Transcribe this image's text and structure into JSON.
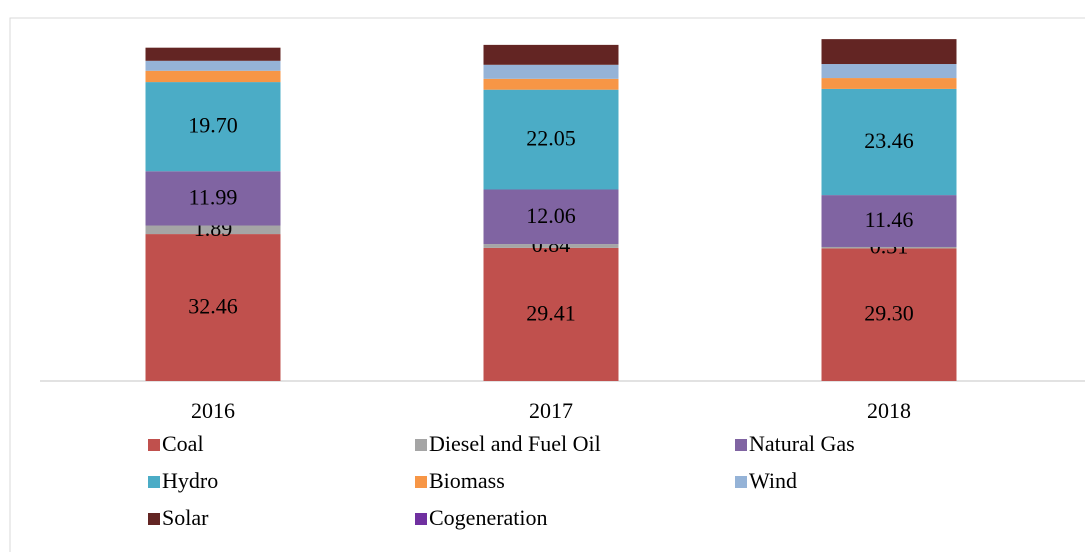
{
  "chart_data": {
    "type": "bar",
    "stacked": true,
    "categories": [
      "2016",
      "2017",
      "2018"
    ],
    "ylim": [
      0,
      76
    ],
    "series": [
      {
        "name": "Coal",
        "color": "#c0504d",
        "values": [
          32.46,
          29.41,
          29.3
        ],
        "value_labels": [
          "32.46",
          "29.41",
          "29.30"
        ]
      },
      {
        "name": "Diesel and Fuel Oil",
        "color": "#a5a5a5",
        "values": [
          1.89,
          0.84,
          0.31
        ],
        "value_labels": [
          "1.89",
          "0.84",
          "0.31"
        ]
      },
      {
        "name": "Natural Gas",
        "color": "#8064a2",
        "values": [
          11.99,
          12.06,
          11.46
        ],
        "value_labels": [
          "11.99",
          "12.06",
          "11.46"
        ]
      },
      {
        "name": "Hydro",
        "color": "#4bacc6",
        "values": [
          19.7,
          22.05,
          23.46
        ],
        "value_labels": [
          "19.70",
          "22.05",
          "23.46"
        ]
      },
      {
        "name": "Biomass",
        "color": "#f79646",
        "values": [
          2.5,
          2.4,
          2.4
        ]
      },
      {
        "name": "Wind",
        "color": "#95b3d7",
        "values": [
          2.2,
          3.1,
          3.1
        ]
      },
      {
        "name": "Solar",
        "color": "#632523",
        "values": [
          2.9,
          4.4,
          5.5
        ]
      },
      {
        "name": "Cogeneration",
        "color": "#7030a0",
        "values": [
          0,
          0,
          0
        ]
      }
    ],
    "legend": "bottom"
  }
}
